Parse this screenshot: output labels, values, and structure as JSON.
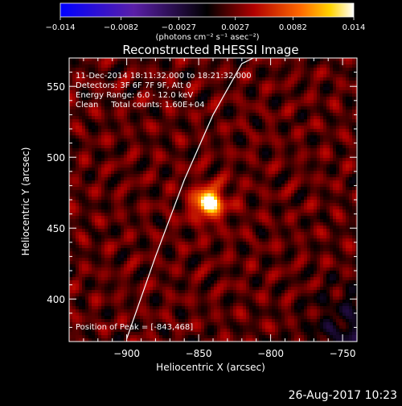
{
  "chart_data": {
    "type": "heatmap",
    "title": "Reconstructed RHESSI Image",
    "colorbar": {
      "min": -0.014,
      "max": 0.014,
      "ticks": [
        "−0.014",
        "−0.0082",
        "−0.0027",
        "0.0027",
        "0.0082",
        "0.014"
      ],
      "tick_values": [
        -0.014,
        -0.0082,
        -0.0027,
        0.0027,
        0.0082,
        0.014
      ],
      "unit_label": "(photons cm⁻² s⁻¹ asec⁻²)"
    },
    "xlabel": "Heliocentric X (arcsec)",
    "ylabel": "Heliocentric Y (arcsec)",
    "xlim": [
      -940,
      -740
    ],
    "ylim": [
      370,
      570
    ],
    "xticks": [
      -900,
      -850,
      -800,
      -750
    ],
    "xtick_labels": [
      "−900",
      "−850",
      "−800",
      "−750"
    ],
    "yticks": [
      400,
      450,
      500,
      550
    ],
    "ytick_labels": [
      "400",
      "450",
      "500",
      "550"
    ],
    "info_lines": [
      "11-Dec-2014 18:11:32.000 to 18:21:32.000",
      "Detectors: 3F 6F 7F 9F, Att 0",
      "Energy Range: 6.0 - 12.0 keV",
      "Clean     Total counts: 1.60E+04"
    ],
    "peak": {
      "x": -843,
      "y": 468,
      "label": "Position of Peak = [-843,468]"
    },
    "limb": [
      [
        -900,
        372
      ],
      [
        -880,
        430
      ],
      [
        -860,
        484
      ],
      [
        -840,
        530
      ],
      [
        -820,
        566
      ],
      [
        -812,
        570
      ]
    ],
    "colormap": "black-red-yellow-white (IDL color table 3 style)"
  },
  "footer": {
    "timestamp": "26-Aug-2017 10:23"
  }
}
